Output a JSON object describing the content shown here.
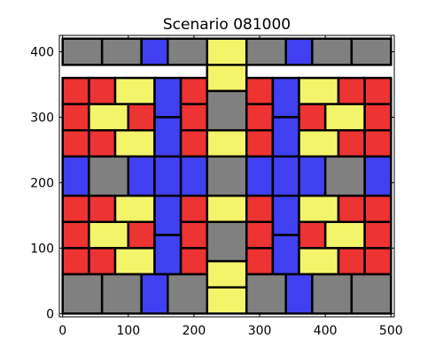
{
  "chart_data": {
    "type": "other",
    "title": "Scenario 081000",
    "xlim": [
      -5,
      505
    ],
    "ylim": [
      -5,
      425
    ],
    "xticks": [
      0,
      100,
      200,
      300,
      400,
      500
    ],
    "yticks": [
      0,
      100,
      200,
      300,
      400
    ],
    "grid": false,
    "colors": {
      "red": "#ee3333",
      "gray": "#808080",
      "blue": "#4040f0",
      "yellow": "#f4f46a"
    },
    "blocks": [
      {
        "x0": 0,
        "y0": 380,
        "x1": 60,
        "y1": 420,
        "color": "gray"
      },
      {
        "x0": 60,
        "y0": 380,
        "x1": 120,
        "y1": 420,
        "color": "gray"
      },
      {
        "x0": 120,
        "y0": 380,
        "x1": 160,
        "y1": 420,
        "color": "blue"
      },
      {
        "x0": 160,
        "y0": 380,
        "x1": 220,
        "y1": 420,
        "color": "gray"
      },
      {
        "x0": 220,
        "y0": 380,
        "x1": 280,
        "y1": 420,
        "color": "yellow"
      },
      {
        "x0": 280,
        "y0": 380,
        "x1": 340,
        "y1": 420,
        "color": "gray"
      },
      {
        "x0": 340,
        "y0": 380,
        "x1": 380,
        "y1": 420,
        "color": "blue"
      },
      {
        "x0": 380,
        "y0": 380,
        "x1": 440,
        "y1": 420,
        "color": "gray"
      },
      {
        "x0": 440,
        "y0": 380,
        "x1": 500,
        "y1": 420,
        "color": "gray"
      },
      {
        "x0": 220,
        "y0": 340,
        "x1": 280,
        "y1": 380,
        "color": "yellow"
      },
      {
        "x0": 0,
        "y0": 320,
        "x1": 40,
        "y1": 360,
        "color": "red"
      },
      {
        "x0": 40,
        "y0": 320,
        "x1": 80,
        "y1": 360,
        "color": "red"
      },
      {
        "x0": 80,
        "y0": 320,
        "x1": 140,
        "y1": 360,
        "color": "yellow"
      },
      {
        "x0": 140,
        "y0": 300,
        "x1": 180,
        "y1": 360,
        "color": "blue"
      },
      {
        "x0": 180,
        "y0": 320,
        "x1": 220,
        "y1": 360,
        "color": "red"
      },
      {
        "x0": 220,
        "y0": 280,
        "x1": 280,
        "y1": 340,
        "color": "gray"
      },
      {
        "x0": 280,
        "y0": 320,
        "x1": 320,
        "y1": 360,
        "color": "red"
      },
      {
        "x0": 320,
        "y0": 300,
        "x1": 360,
        "y1": 360,
        "color": "blue"
      },
      {
        "x0": 360,
        "y0": 320,
        "x1": 420,
        "y1": 360,
        "color": "yellow"
      },
      {
        "x0": 420,
        "y0": 320,
        "x1": 460,
        "y1": 360,
        "color": "red"
      },
      {
        "x0": 460,
        "y0": 320,
        "x1": 500,
        "y1": 360,
        "color": "red"
      },
      {
        "x0": 0,
        "y0": 280,
        "x1": 40,
        "y1": 320,
        "color": "red"
      },
      {
        "x0": 40,
        "y0": 280,
        "x1": 100,
        "y1": 320,
        "color": "yellow"
      },
      {
        "x0": 100,
        "y0": 280,
        "x1": 140,
        "y1": 320,
        "color": "red"
      },
      {
        "x0": 180,
        "y0": 280,
        "x1": 220,
        "y1": 320,
        "color": "red"
      },
      {
        "x0": 280,
        "y0": 280,
        "x1": 320,
        "y1": 320,
        "color": "red"
      },
      {
        "x0": 360,
        "y0": 280,
        "x1": 400,
        "y1": 320,
        "color": "red"
      },
      {
        "x0": 400,
        "y0": 280,
        "x1": 460,
        "y1": 320,
        "color": "yellow"
      },
      {
        "x0": 460,
        "y0": 280,
        "x1": 500,
        "y1": 320,
        "color": "red"
      },
      {
        "x0": 0,
        "y0": 240,
        "x1": 40,
        "y1": 280,
        "color": "red"
      },
      {
        "x0": 40,
        "y0": 240,
        "x1": 80,
        "y1": 280,
        "color": "red"
      },
      {
        "x0": 80,
        "y0": 240,
        "x1": 140,
        "y1": 280,
        "color": "yellow"
      },
      {
        "x0": 140,
        "y0": 240,
        "x1": 180,
        "y1": 300,
        "color": "blue"
      },
      {
        "x0": 180,
        "y0": 240,
        "x1": 220,
        "y1": 280,
        "color": "red"
      },
      {
        "x0": 220,
        "y0": 240,
        "x1": 280,
        "y1": 280,
        "color": "yellow"
      },
      {
        "x0": 280,
        "y0": 240,
        "x1": 320,
        "y1": 280,
        "color": "red"
      },
      {
        "x0": 320,
        "y0": 240,
        "x1": 360,
        "y1": 300,
        "color": "blue"
      },
      {
        "x0": 360,
        "y0": 240,
        "x1": 420,
        "y1": 280,
        "color": "yellow"
      },
      {
        "x0": 420,
        "y0": 240,
        "x1": 460,
        "y1": 280,
        "color": "red"
      },
      {
        "x0": 460,
        "y0": 240,
        "x1": 500,
        "y1": 280,
        "color": "red"
      },
      {
        "x0": 0,
        "y0": 180,
        "x1": 40,
        "y1": 240,
        "color": "blue"
      },
      {
        "x0": 40,
        "y0": 180,
        "x1": 100,
        "y1": 240,
        "color": "gray"
      },
      {
        "x0": 100,
        "y0": 180,
        "x1": 140,
        "y1": 240,
        "color": "blue"
      },
      {
        "x0": 140,
        "y0": 180,
        "x1": 180,
        "y1": 240,
        "color": "blue"
      },
      {
        "x0": 180,
        "y0": 180,
        "x1": 220,
        "y1": 240,
        "color": "blue"
      },
      {
        "x0": 220,
        "y0": 180,
        "x1": 280,
        "y1": 240,
        "color": "gray"
      },
      {
        "x0": 280,
        "y0": 180,
        "x1": 320,
        "y1": 240,
        "color": "blue"
      },
      {
        "x0": 320,
        "y0": 180,
        "x1": 360,
        "y1": 240,
        "color": "blue"
      },
      {
        "x0": 360,
        "y0": 180,
        "x1": 400,
        "y1": 240,
        "color": "blue"
      },
      {
        "x0": 400,
        "y0": 180,
        "x1": 460,
        "y1": 240,
        "color": "gray"
      },
      {
        "x0": 460,
        "y0": 180,
        "x1": 500,
        "y1": 240,
        "color": "blue"
      },
      {
        "x0": 0,
        "y0": 140,
        "x1": 40,
        "y1": 180,
        "color": "red"
      },
      {
        "x0": 40,
        "y0": 140,
        "x1": 80,
        "y1": 180,
        "color": "red"
      },
      {
        "x0": 80,
        "y0": 140,
        "x1": 140,
        "y1": 180,
        "color": "yellow"
      },
      {
        "x0": 140,
        "y0": 120,
        "x1": 180,
        "y1": 180,
        "color": "blue"
      },
      {
        "x0": 180,
        "y0": 140,
        "x1": 220,
        "y1": 180,
        "color": "red"
      },
      {
        "x0": 220,
        "y0": 140,
        "x1": 280,
        "y1": 180,
        "color": "yellow"
      },
      {
        "x0": 280,
        "y0": 140,
        "x1": 320,
        "y1": 180,
        "color": "red"
      },
      {
        "x0": 320,
        "y0": 120,
        "x1": 360,
        "y1": 180,
        "color": "blue"
      },
      {
        "x0": 360,
        "y0": 140,
        "x1": 420,
        "y1": 180,
        "color": "yellow"
      },
      {
        "x0": 420,
        "y0": 140,
        "x1": 460,
        "y1": 180,
        "color": "red"
      },
      {
        "x0": 460,
        "y0": 140,
        "x1": 500,
        "y1": 180,
        "color": "red"
      },
      {
        "x0": 0,
        "y0": 100,
        "x1": 40,
        "y1": 140,
        "color": "red"
      },
      {
        "x0": 40,
        "y0": 100,
        "x1": 100,
        "y1": 140,
        "color": "yellow"
      },
      {
        "x0": 100,
        "y0": 100,
        "x1": 140,
        "y1": 140,
        "color": "red"
      },
      {
        "x0": 180,
        "y0": 100,
        "x1": 220,
        "y1": 140,
        "color": "red"
      },
      {
        "x0": 220,
        "y0": 80,
        "x1": 280,
        "y1": 140,
        "color": "gray"
      },
      {
        "x0": 280,
        "y0": 100,
        "x1": 320,
        "y1": 140,
        "color": "red"
      },
      {
        "x0": 360,
        "y0": 100,
        "x1": 400,
        "y1": 140,
        "color": "red"
      },
      {
        "x0": 400,
        "y0": 100,
        "x1": 460,
        "y1": 140,
        "color": "yellow"
      },
      {
        "x0": 460,
        "y0": 100,
        "x1": 500,
        "y1": 140,
        "color": "red"
      },
      {
        "x0": 0,
        "y0": 60,
        "x1": 40,
        "y1": 100,
        "color": "red"
      },
      {
        "x0": 40,
        "y0": 60,
        "x1": 80,
        "y1": 100,
        "color": "red"
      },
      {
        "x0": 80,
        "y0": 60,
        "x1": 140,
        "y1": 100,
        "color": "yellow"
      },
      {
        "x0": 140,
        "y0": 60,
        "x1": 180,
        "y1": 120,
        "color": "blue"
      },
      {
        "x0": 180,
        "y0": 60,
        "x1": 220,
        "y1": 100,
        "color": "red"
      },
      {
        "x0": 220,
        "y0": 40,
        "x1": 280,
        "y1": 80,
        "color": "yellow"
      },
      {
        "x0": 280,
        "y0": 60,
        "x1": 320,
        "y1": 100,
        "color": "red"
      },
      {
        "x0": 320,
        "y0": 60,
        "x1": 360,
        "y1": 120,
        "color": "blue"
      },
      {
        "x0": 360,
        "y0": 60,
        "x1": 420,
        "y1": 100,
        "color": "yellow"
      },
      {
        "x0": 420,
        "y0": 60,
        "x1": 460,
        "y1": 100,
        "color": "red"
      },
      {
        "x0": 460,
        "y0": 60,
        "x1": 500,
        "y1": 100,
        "color": "red"
      },
      {
        "x0": 0,
        "y0": 0,
        "x1": 60,
        "y1": 60,
        "color": "gray"
      },
      {
        "x0": 60,
        "y0": 0,
        "x1": 120,
        "y1": 60,
        "color": "gray"
      },
      {
        "x0": 120,
        "y0": 0,
        "x1": 160,
        "y1": 60,
        "color": "blue"
      },
      {
        "x0": 160,
        "y0": 0,
        "x1": 220,
        "y1": 60,
        "color": "gray"
      },
      {
        "x0": 220,
        "y0": 0,
        "x1": 280,
        "y1": 40,
        "color": "yellow"
      },
      {
        "x0": 280,
        "y0": 0,
        "x1": 340,
        "y1": 60,
        "color": "gray"
      },
      {
        "x0": 340,
        "y0": 0,
        "x1": 380,
        "y1": 60,
        "color": "blue"
      },
      {
        "x0": 380,
        "y0": 0,
        "x1": 440,
        "y1": 60,
        "color": "gray"
      },
      {
        "x0": 440,
        "y0": 0,
        "x1": 500,
        "y1": 60,
        "color": "gray"
      }
    ]
  }
}
